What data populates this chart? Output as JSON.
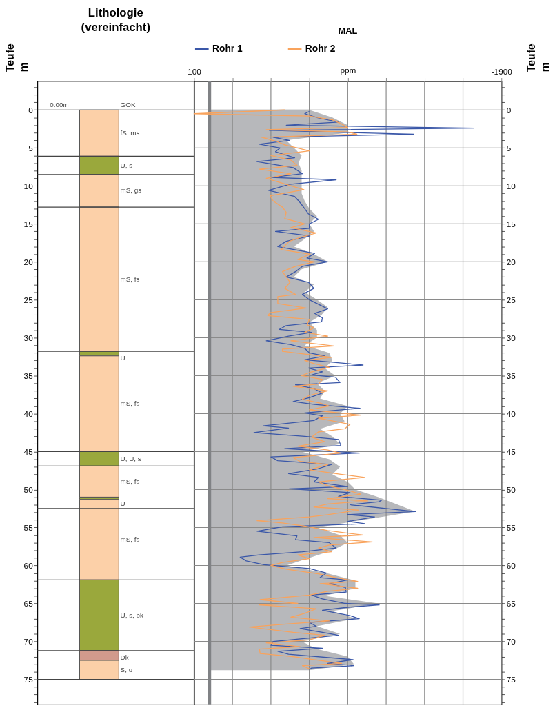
{
  "chart_data": [
    {
      "type": "bar",
      "stacked": true,
      "title": "Lithologie (vereinfacht)",
      "ylabel": "Teufe m",
      "categories": [
        null
      ],
      "ylim": [
        78.3,
        -3.8
      ],
      "yticks": [
        {
          "value": -3,
          "label": null
        },
        {
          "value": -2,
          "label": null
        },
        {
          "value": -1,
          "label": null
        },
        0,
        {
          "value": 1,
          "label": null
        },
        {
          "value": 2,
          "label": null
        },
        {
          "value": 3,
          "label": null
        },
        {
          "value": 4,
          "label": null
        },
        5,
        {
          "value": 6,
          "label": null
        },
        {
          "value": 7,
          "label": null
        },
        {
          "value": 8,
          "label": null
        },
        {
          "value": 9,
          "label": null
        },
        10,
        {
          "value": 11,
          "label": null
        },
        {
          "value": 12,
          "label": null
        },
        {
          "value": 13,
          "label": null
        },
        {
          "value": 14,
          "label": null
        },
        15,
        {
          "value": 16,
          "label": null
        },
        {
          "value": 17,
          "label": null
        },
        {
          "value": 18,
          "label": null
        },
        {
          "value": 19,
          "label": null
        },
        20,
        {
          "value": 21,
          "label": null
        },
        {
          "value": 22,
          "label": null
        },
        {
          "value": 23,
          "label": null
        },
        {
          "value": 24,
          "label": null
        },
        25,
        {
          "value": 26,
          "label": null
        },
        {
          "value": 27,
          "label": null
        },
        {
          "value": 28,
          "label": null
        },
        {
          "value": 29,
          "label": null
        },
        30,
        {
          "value": 31,
          "label": null
        },
        {
          "value": 32,
          "label": null
        },
        {
          "value": 33,
          "label": null
        },
        {
          "value": 34,
          "label": null
        },
        35,
        {
          "value": 36,
          "label": null
        },
        {
          "value": 37,
          "label": null
        },
        {
          "value": 38,
          "label": null
        },
        {
          "value": 39,
          "label": null
        },
        40,
        {
          "value": 41,
          "label": null
        },
        {
          "value": 42,
          "label": null
        },
        {
          "value": 43,
          "label": null
        },
        {
          "value": 44,
          "label": null
        },
        45,
        {
          "value": 46,
          "label": null
        },
        {
          "value": 47,
          "label": null
        },
        {
          "value": 48,
          "label": null
        },
        {
          "value": 49,
          "label": null
        },
        50,
        {
          "value": 51,
          "label": null
        },
        {
          "value": 52,
          "label": null
        },
        {
          "value": 53,
          "label": null
        },
        {
          "value": 54,
          "label": null
        },
        55,
        {
          "value": 56,
          "label": null
        },
        {
          "value": 57,
          "label": null
        },
        {
          "value": 58,
          "label": null
        },
        {
          "value": 59,
          "label": null
        },
        60,
        {
          "value": 61,
          "label": null
        },
        {
          "value": 62,
          "label": null
        },
        {
          "value": 63,
          "label": null
        },
        {
          "value": 64,
          "label": null
        },
        65,
        {
          "value": 66,
          "label": null
        },
        {
          "value": 67,
          "label": null
        },
        {
          "value": 68,
          "label": null
        },
        {
          "value": 69,
          "label": null
        },
        70,
        {
          "value": 71,
          "label": null
        },
        {
          "value": 72,
          "label": null
        },
        {
          "value": 73,
          "label": null
        },
        {
          "value": 74,
          "label": null
        },
        75,
        {
          "value": 76,
          "label": null
        },
        {
          "value": 77,
          "label": null
        },
        {
          "value": 78,
          "label": null
        }
      ],
      "series": [
        {
          "name": "fS, ms",
          "color": "#fcd0a8",
          "values": [
            6.1
          ]
        },
        {
          "name": "U, s",
          "color": "#9aa83c",
          "values": [
            2.4
          ]
        },
        {
          "name": "mS, gs",
          "color": "#fcd0a8",
          "values": [
            4.3
          ]
        },
        {
          "name": "mS, fs",
          "color": "#fcd0a8",
          "values": [
            19.0
          ]
        },
        {
          "name": "U",
          "color": "#9aa83c",
          "values": [
            0.6
          ]
        },
        {
          "name": "mS, fs",
          "color": "#fcd0a8",
          "values": [
            12.6
          ]
        },
        {
          "name": "U, U, s",
          "color": "#9aa83c",
          "values": [
            1.9
          ]
        },
        {
          "name": "mS, fs",
          "color": "#fcd0a8",
          "values": [
            4.1
          ]
        },
        {
          "name": "U",
          "color": "#9aa83c",
          "values": [
            0.3
          ]
        },
        {
          "name": "mS, fs",
          "color": "#fcd0a8",
          "values": [
            10.6
          ]
        },
        {
          "name": "U, s, bk",
          "color": "#9aa83c",
          "values": [
            9.3
          ]
        },
        {
          "name": "Dk",
          "color": "#d19a8c",
          "values": [
            1.3
          ]
        },
        {
          "name": "S, u",
          "color": "#fcd0a8",
          "values": [
            2.5
          ]
        }
      ],
      "ref_lines": [
        {
          "axis": "y",
          "value": 0,
          "color": "#444444"
        },
        {
          "axis": "y",
          "value": 6.1,
          "color": "#444444"
        },
        {
          "axis": "y",
          "value": 8.5,
          "color": "#444444"
        },
        {
          "axis": "y",
          "value": 12.8,
          "color": "#444444"
        },
        {
          "axis": "y",
          "value": 31.8,
          "color": "#444444"
        },
        {
          "axis": "y",
          "value": 45.0,
          "color": "#444444"
        },
        {
          "axis": "y",
          "value": 46.9,
          "color": "#444444"
        },
        {
          "axis": "y",
          "value": 52.5,
          "color": "#444444"
        },
        {
          "axis": "y",
          "value": 61.9,
          "color": "#444444"
        },
        {
          "axis": "y",
          "value": 71.2,
          "color": "#444444"
        },
        {
          "axis": "y",
          "value": 75.0,
          "color": "#444444"
        }
      ],
      "annotations": [
        "0.00m",
        "GOK"
      ]
    },
    {
      "type": "line",
      "orientation": "horizontal",
      "title": "MAL",
      "xlabel": "ppm",
      "ylabel": "Teufe m",
      "xlim": [
        100,
        -1900
      ],
      "xticks": [
        100,
        {
          "value": -150,
          "label": null
        },
        {
          "value": -400,
          "label": null
        },
        {
          "value": -650,
          "label": null
        },
        {
          "value": -900,
          "label": null
        },
        {
          "value": -1150,
          "label": null
        },
        {
          "value": -1400,
          "label": null
        },
        {
          "value": -1650,
          "label": null
        },
        -1900
      ],
      "ylim": [
        78.3,
        -3.8
      ],
      "yticks": [
        {
          "value": -3,
          "label": null
        },
        {
          "value": -2,
          "label": null
        },
        {
          "value": -1,
          "label": null
        },
        0,
        {
          "value": 1,
          "label": null
        },
        {
          "value": 2,
          "label": null
        },
        {
          "value": 3,
          "label": null
        },
        {
          "value": 4,
          "label": null
        },
        5,
        {
          "value": 6,
          "label": null
        },
        {
          "value": 7,
          "label": null
        },
        {
          "value": 8,
          "label": null
        },
        {
          "value": 9,
          "label": null
        },
        10,
        {
          "value": 11,
          "label": null
        },
        {
          "value": 12,
          "label": null
        },
        {
          "value": 13,
          "label": null
        },
        {
          "value": 14,
          "label": null
        },
        15,
        {
          "value": 16,
          "label": null
        },
        {
          "value": 17,
          "label": null
        },
        {
          "value": 18,
          "label": null
        },
        {
          "value": 19,
          "label": null
        },
        20,
        {
          "value": 21,
          "label": null
        },
        {
          "value": 22,
          "label": null
        },
        {
          "value": 23,
          "label": null
        },
        {
          "value": 24,
          "label": null
        },
        25,
        {
          "value": 26,
          "label": null
        },
        {
          "value": 27,
          "label": null
        },
        {
          "value": 28,
          "label": null
        },
        {
          "value": 29,
          "label": null
        },
        30,
        {
          "value": 31,
          "label": null
        },
        {
          "value": 32,
          "label": null
        },
        {
          "value": 33,
          "label": null
        },
        {
          "value": 34,
          "label": null
        },
        35,
        {
          "value": 36,
          "label": null
        },
        {
          "value": 37,
          "label": null
        },
        {
          "value": 38,
          "label": null
        },
        {
          "value": 39,
          "label": null
        },
        40,
        {
          "value": 41,
          "label": null
        },
        {
          "value": 42,
          "label": null
        },
        {
          "value": 43,
          "label": null
        },
        {
          "value": 44,
          "label": null
        },
        45,
        {
          "value": 46,
          "label": null
        },
        {
          "value": 47,
          "label": null
        },
        {
          "value": 48,
          "label": null
        },
        {
          "value": 49,
          "label": null
        },
        50,
        {
          "value": 51,
          "label": null
        },
        {
          "value": 52,
          "label": null
        },
        {
          "value": 53,
          "label": null
        },
        {
          "value": 54,
          "label": null
        },
        55,
        {
          "value": 56,
          "label": null
        },
        {
          "value": 57,
          "label": null
        },
        {
          "value": 58,
          "label": null
        },
        {
          "value": 59,
          "label": null
        },
        60,
        {
          "value": 61,
          "label": null
        },
        {
          "value": 62,
          "label": null
        },
        {
          "value": 63,
          "label": null
        },
        {
          "value": 64,
          "label": null
        },
        65,
        {
          "value": 66,
          "label": null
        },
        {
          "value": 67,
          "label": null
        },
        {
          "value": 68,
          "label": null
        },
        {
          "value": 69,
          "label": null
        },
        70,
        {
          "value": 71,
          "label": null
        },
        {
          "value": 72,
          "label": null
        },
        {
          "value": 73,
          "label": null
        },
        {
          "value": 74,
          "label": null
        },
        75,
        {
          "value": 76,
          "label": null
        },
        {
          "value": 77,
          "label": null
        },
        {
          "value": 78,
          "label": null
        }
      ],
      "grid": true,
      "legend": "top",
      "ref_lines": [
        {
          "axis": "x",
          "value": 0,
          "color": "#808285"
        }
      ],
      "series": [
        {
          "type": "area",
          "color": "#b7b8bb",
          "x": [
            0,
            1,
            2,
            3,
            4,
            5,
            6,
            7,
            8,
            9,
            10,
            11,
            12,
            13,
            14,
            15,
            16,
            17,
            18,
            19,
            20,
            21,
            22,
            23,
            24,
            25,
            26,
            27,
            28,
            29,
            30,
            31,
            32,
            33,
            34,
            35,
            36,
            37,
            38,
            39,
            40,
            41,
            42,
            43,
            44,
            45,
            46,
            47,
            48,
            49,
            50,
            51,
            52.9,
            54,
            55,
            56,
            57,
            58,
            59,
            60,
            61,
            62,
            63,
            64,
            65,
            66,
            67,
            68,
            69,
            70,
            71,
            72,
            73,
            73.8
          ],
          "values": [
            -650,
            -800,
            -900,
            -900,
            -500,
            -550,
            -600,
            -580,
            -600,
            -600,
            -600,
            -600,
            -620,
            -650,
            -700,
            -650,
            -680,
            -620,
            -550,
            -680,
            -770,
            -600,
            -550,
            -680,
            -620,
            -700,
            -770,
            -730,
            -650,
            -700,
            -700,
            -620,
            -780,
            -800,
            -750,
            -820,
            -700,
            -750,
            -720,
            -900,
            -850,
            -880,
            -720,
            -800,
            -850,
            -600,
            -780,
            -850,
            -800,
            -900,
            -950,
            -1100,
            -1340,
            -1000,
            -700,
            -850,
            -900,
            -800,
            -650,
            -500,
            -760,
            -950,
            -950,
            -750,
            -1100,
            -800,
            -950,
            -700,
            -850,
            -600,
            -700,
            -900,
            -940,
            -650
          ]
        },
        {
          "name": "Rohr 1",
          "color": "#3a57a8",
          "x": [
            0.2,
            0.5,
            1.0,
            1.6,
            2.0,
            2.4,
            2.7,
            3.2,
            3.6,
            4.0,
            4.5,
            5.0,
            5.5,
            6.3,
            6.8,
            7.6,
            8.4,
            8.9,
            9.2,
            9.8,
            10.6,
            11.4,
            12.2,
            13.0,
            13.7,
            14.4,
            15.0,
            15.6,
            16.0,
            16.6,
            17.3,
            18.0,
            18.9,
            19.5,
            20.0,
            20.6,
            21.3,
            22.0,
            22.7,
            23.5,
            24.3,
            25.0,
            25.5,
            26.2,
            26.8,
            27.4,
            27.9,
            28.4,
            28.9,
            29.3,
            29.8,
            30.4,
            30.9,
            31.4,
            32.0,
            32.4,
            32.9,
            33.6,
            34.0,
            34.5,
            34.9,
            35.2,
            35.9,
            36.2,
            36.7,
            37.3,
            37.9,
            38.4,
            38.8,
            39.3,
            39.9,
            40.3,
            40.9,
            41.6,
            41.9,
            42.5,
            43.0,
            43.4,
            44.2,
            44.6,
            45.2,
            45.7,
            46.2,
            46.7,
            47.3,
            47.9,
            48.4,
            49.0,
            49.6,
            49.9,
            50.4,
            50.9,
            51.4,
            51.6,
            52.0,
            52.9,
            53.3,
            53.6,
            54.2,
            54.5,
            54.9,
            55.5,
            56.1,
            56.6,
            57.0,
            57.7,
            58.2,
            58.6,
            58.9,
            59.4,
            59.9,
            60.4,
            61.0,
            61.6,
            61.9,
            62.4,
            62.9,
            63.5,
            63.9,
            64.4,
            65.0,
            65.2,
            65.5,
            65.9,
            66.6,
            67.0,
            67.5,
            68.0,
            68.3,
            68.8,
            69.2,
            70.0,
            70.5,
            70.9,
            71.3,
            71.7,
            72.4,
            72.9,
            73.2,
            73.5,
            73.7
          ],
          "values": [
            -650,
            -620,
            -700,
            -840,
            -500,
            -1720,
            -390,
            -1330,
            -415,
            -520,
            -325,
            -460,
            -430,
            -555,
            -310,
            -545,
            -605,
            -400,
            -825,
            -520,
            -385,
            -555,
            -590,
            -620,
            -645,
            -710,
            -650,
            -650,
            -430,
            -655,
            -500,
            -445,
            -685,
            -635,
            -770,
            -605,
            -560,
            -500,
            -645,
            -680,
            -605,
            -650,
            -700,
            -770,
            -685,
            -735,
            -730,
            -500,
            -455,
            -665,
            -515,
            -370,
            -530,
            -620,
            -650,
            -750,
            -620,
            -1000,
            -645,
            -735,
            -665,
            -820,
            -850,
            -560,
            -680,
            -735,
            -650,
            -545,
            -685,
            -980,
            -620,
            -735,
            -680,
            -350,
            -515,
            -290,
            -620,
            -840,
            -855,
            -490,
            -975,
            -400,
            -445,
            -795,
            -700,
            -515,
            -710,
            -680,
            -900,
            -520,
            -915,
            -840,
            -1120,
            -1105,
            -915,
            -1340,
            -900,
            -1075,
            -900,
            -1010,
            -475,
            -310,
            -570,
            -560,
            -780,
            -825,
            -605,
            -325,
            -200,
            -240,
            -355,
            -650,
            -760,
            -720,
            -900,
            -780,
            -885,
            -890,
            -665,
            -735,
            -885,
            -1105,
            -900,
            -735,
            -915,
            -975,
            -650,
            -695,
            -590,
            -735,
            -840,
            -415,
            -400,
            -735,
            -445,
            -515,
            -935,
            -770,
            -940,
            -665,
            -650
          ]
        },
        {
          "name": "Rohr 2",
          "color": "#f9a35c",
          "x": [
            0.0,
            0.5,
            0.8,
            1.3,
            1.8,
            2.3,
            2.6,
            2.9,
            3.2,
            3.6,
            4.2,
            4.6,
            5.4,
            6.0,
            6.6,
            7.3,
            7.8,
            8.4,
            9.0,
            9.8,
            10.5,
            11.3,
            12.0,
            12.8,
            13.5,
            14.3,
            15.0,
            15.5,
            16.2,
            16.8,
            17.3,
            18.4,
            19.0,
            19.7,
            20.0,
            20.6,
            21.3,
            22.0,
            22.7,
            23.5,
            24.3,
            24.6,
            25.5,
            26.1,
            26.7,
            27.1,
            27.6,
            28.3,
            28.7,
            29.3,
            29.8,
            30.4,
            31.1,
            31.5,
            31.8,
            32.6,
            33.0,
            33.4,
            33.9,
            34.6,
            35.0,
            35.5,
            36.1,
            36.4,
            37.0,
            37.6,
            38.1,
            38.6,
            39.0,
            39.5,
            40.2,
            40.6,
            41.4,
            42.0,
            42.4,
            43.1,
            43.7,
            44.3,
            44.8,
            45.2,
            45.8,
            46.3,
            46.7,
            47.4,
            48.0,
            48.4,
            49.0,
            49.5,
            50.1,
            50.6,
            51.2,
            51.5,
            51.9,
            52.3,
            52.7,
            53.3,
            53.6,
            54.1,
            54.4,
            54.8,
            55.4,
            56.0,
            56.3,
            56.9,
            57.3,
            57.7,
            58.2,
            58.6,
            59.1,
            59.6,
            60.0,
            60.5,
            61.1,
            61.6,
            62.1,
            62.4,
            63.0,
            63.4,
            63.9,
            64.5,
            65.0,
            65.2,
            65.7,
            66.3,
            66.8,
            67.3,
            67.7,
            68.1,
            68.8,
            69.2,
            69.8,
            70.2,
            70.7,
            71.0,
            71.6,
            72.0,
            72.4,
            72.9,
            73.2,
            73.6
          ],
          "values": [
            -490,
            100,
            -650,
            -800,
            -855,
            -900,
            -370,
            -900,
            -960,
            -340,
            -445,
            -490,
            -650,
            -400,
            -530,
            -570,
            -325,
            -530,
            -370,
            -500,
            -615,
            -395,
            -415,
            -475,
            -500,
            -490,
            -620,
            -530,
            -695,
            -590,
            -520,
            -465,
            -655,
            -575,
            -685,
            -560,
            -475,
            -500,
            -525,
            -490,
            -560,
            -445,
            -445,
            -630,
            -395,
            -380,
            -650,
            -635,
            -680,
            -620,
            -770,
            -530,
            -810,
            -475,
            -475,
            -795,
            -620,
            -680,
            -780,
            -650,
            -600,
            -735,
            -710,
            -545,
            -770,
            -650,
            -605,
            -720,
            -780,
            -650,
            -985,
            -710,
            -915,
            -880,
            -710,
            -665,
            -750,
            -575,
            -770,
            -855,
            -545,
            -590,
            -770,
            -650,
            -855,
            -1010,
            -710,
            -770,
            -900,
            -985,
            -770,
            -1030,
            -770,
            -680,
            -970,
            -770,
            -650,
            -310,
            -475,
            -620,
            -770,
            -1000,
            -680,
            -1060,
            -780,
            -710,
            -795,
            -575,
            -650,
            -475,
            -400,
            -500,
            -710,
            -825,
            -965,
            -720,
            -965,
            -770,
            -650,
            -330,
            -575,
            -325,
            -695,
            -620,
            -530,
            -780,
            -515,
            -260,
            -545,
            -750,
            -650,
            -370,
            -590,
            -325,
            -330,
            -545,
            -680,
            -860,
            -605,
            -650
          ]
        }
      ]
    }
  ]
}
